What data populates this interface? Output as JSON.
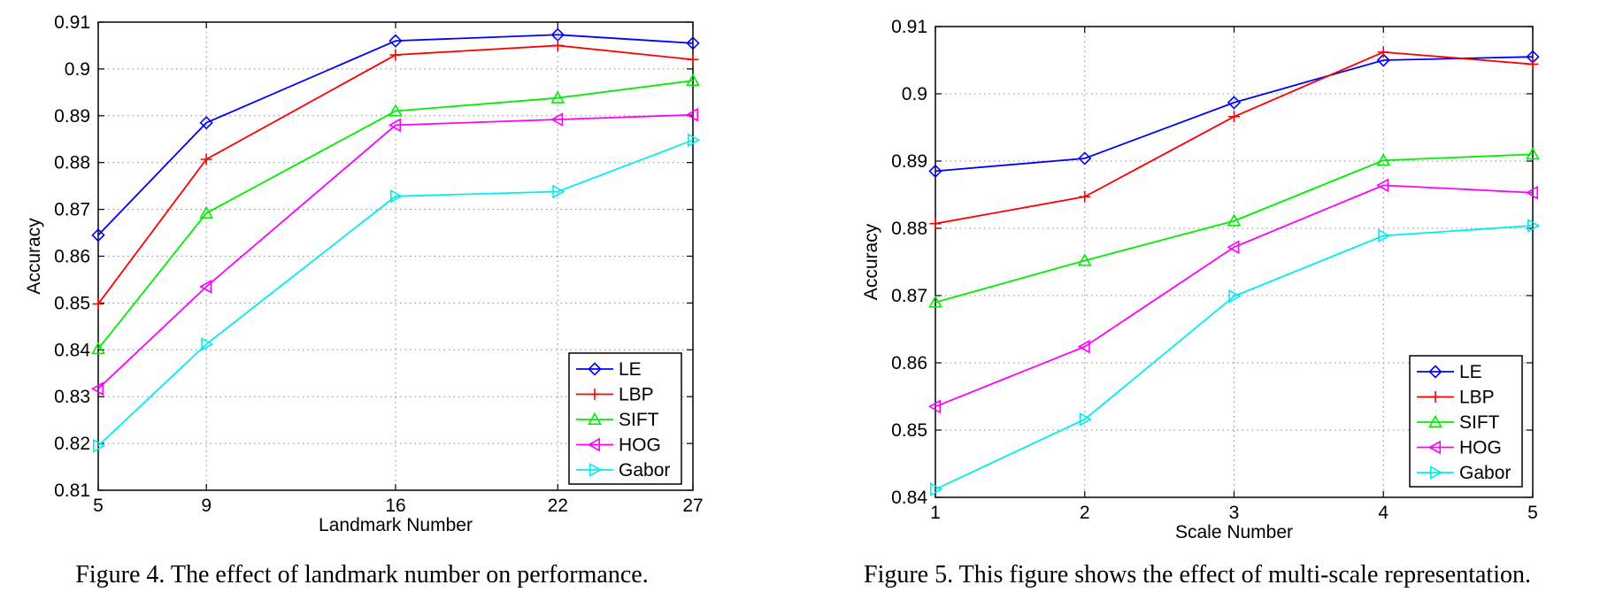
{
  "chart_data": [
    {
      "type": "line",
      "xlabel": "Landmark Number",
      "ylabel": "Accuracy",
      "x": [
        5,
        9,
        16,
        22,
        27
      ],
      "xticks": [
        "5",
        "9",
        "16",
        "22",
        "27"
      ],
      "ylim": [
        0.81,
        0.91
      ],
      "yticks": [
        "0.81",
        "0.82",
        "0.83",
        "0.84",
        "0.85",
        "0.86",
        "0.87",
        "0.88",
        "0.89",
        "0.9",
        "0.91"
      ],
      "grid": true,
      "legend_position": "bottom-right",
      "caption": "Figure 4. The effect of landmark number on performance.",
      "series": [
        {
          "name": "LE",
          "color": "#0000ff",
          "marker": "diamond",
          "values": [
            0.8645,
            0.8885,
            0.906,
            0.9073,
            0.9055
          ]
        },
        {
          "name": "LBP",
          "color": "#ff0000",
          "marker": "plus",
          "values": [
            0.8498,
            0.8807,
            0.903,
            0.905,
            0.902
          ]
        },
        {
          "name": "SIFT",
          "color": "#00ee00",
          "marker": "triangle-up",
          "values": [
            0.8402,
            0.8692,
            0.891,
            0.8938,
            0.8975
          ]
        },
        {
          "name": "HOG",
          "color": "#ff00ff",
          "marker": "triangle-left",
          "values": [
            0.8317,
            0.8535,
            0.888,
            0.8892,
            0.8902
          ]
        },
        {
          "name": "Gabor",
          "color": "#00eeee",
          "marker": "triangle-right",
          "values": [
            0.8195,
            0.8412,
            0.8728,
            0.8738,
            0.8848
          ]
        }
      ]
    },
    {
      "type": "line",
      "xlabel": "Scale Number",
      "ylabel": "Accuracy",
      "x": [
        1,
        2,
        3,
        4,
        5
      ],
      "xticks": [
        "1",
        "2",
        "3",
        "4",
        "5"
      ],
      "ylim": [
        0.84,
        0.91
      ],
      "yticks": [
        "0.84",
        "0.85",
        "0.86",
        "0.87",
        "0.88",
        "0.89",
        "0.9",
        "0.91"
      ],
      "grid": true,
      "legend_position": "bottom-right",
      "caption": "Figure 5. This figure shows the effect of multi-scale representation.",
      "series": [
        {
          "name": "LE",
          "color": "#0000ff",
          "marker": "diamond",
          "values": [
            0.8885,
            0.8904,
            0.8987,
            0.905,
            0.9055
          ]
        },
        {
          "name": "LBP",
          "color": "#ff0000",
          "marker": "plus",
          "values": [
            0.8807,
            0.8847,
            0.8966,
            0.9062,
            0.9044
          ]
        },
        {
          "name": "SIFT",
          "color": "#00ee00",
          "marker": "triangle-up",
          "values": [
            0.869,
            0.8752,
            0.8811,
            0.8901,
            0.891
          ]
        },
        {
          "name": "HOG",
          "color": "#ff00ff",
          "marker": "triangle-left",
          "values": [
            0.8535,
            0.8624,
            0.8772,
            0.8864,
            0.8853
          ]
        },
        {
          "name": "Gabor",
          "color": "#00eeee",
          "marker": "triangle-right",
          "values": [
            0.8412,
            0.8516,
            0.8699,
            0.8789,
            0.8804
          ]
        }
      ]
    }
  ]
}
